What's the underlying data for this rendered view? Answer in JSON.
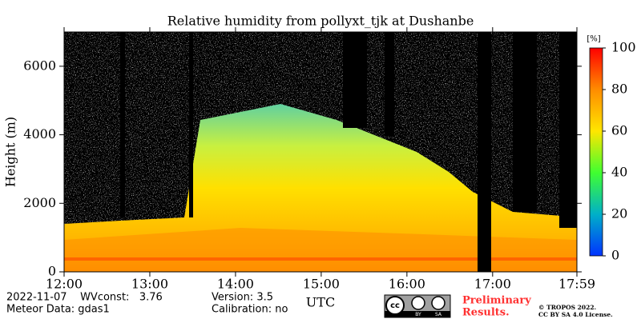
{
  "chart_data": {
    "type": "heatmap",
    "title": "Relative humidity from pollyxt_tjk at Dushanbe",
    "x_label": "UTC",
    "y_label": "Height (m)",
    "xlim": [
      12,
      17.9833
    ],
    "xticks": [
      {
        "value": 12,
        "label": "12:00"
      },
      {
        "value": 13,
        "label": "13:00"
      },
      {
        "value": 14,
        "label": "14:00"
      },
      {
        "value": 15,
        "label": "15:00"
      },
      {
        "value": 16,
        "label": "16:00"
      },
      {
        "value": 17,
        "label": "17:00"
      },
      {
        "value": 17.9833,
        "label": "17:59"
      }
    ],
    "ylim": [
      0,
      7000
    ],
    "yticks": [
      0,
      2000,
      4000,
      6000
    ],
    "colorbar": {
      "label": "[%]",
      "lim": [
        0,
        100
      ],
      "ticks": [
        0,
        20,
        40,
        60,
        80,
        100
      ],
      "colors": [
        "#0033ff",
        "#00b0c8",
        "#40ff30",
        "#ffe600",
        "#ff8c00",
        "#ff0000"
      ]
    }
  },
  "footer": {
    "line1": "2022-11-07    WVconst:   3.76",
    "line2": "Meteor Data: gdas1",
    "version": "Version: 3.5",
    "calibration": "Calibration: no",
    "preliminary": [
      "Preliminary",
      "Results."
    ],
    "copyright": [
      "© TROPOS 2022.",
      "CC BY SA 4.0 License."
    ],
    "badge": [
      "cc",
      "BY",
      "SA"
    ]
  }
}
